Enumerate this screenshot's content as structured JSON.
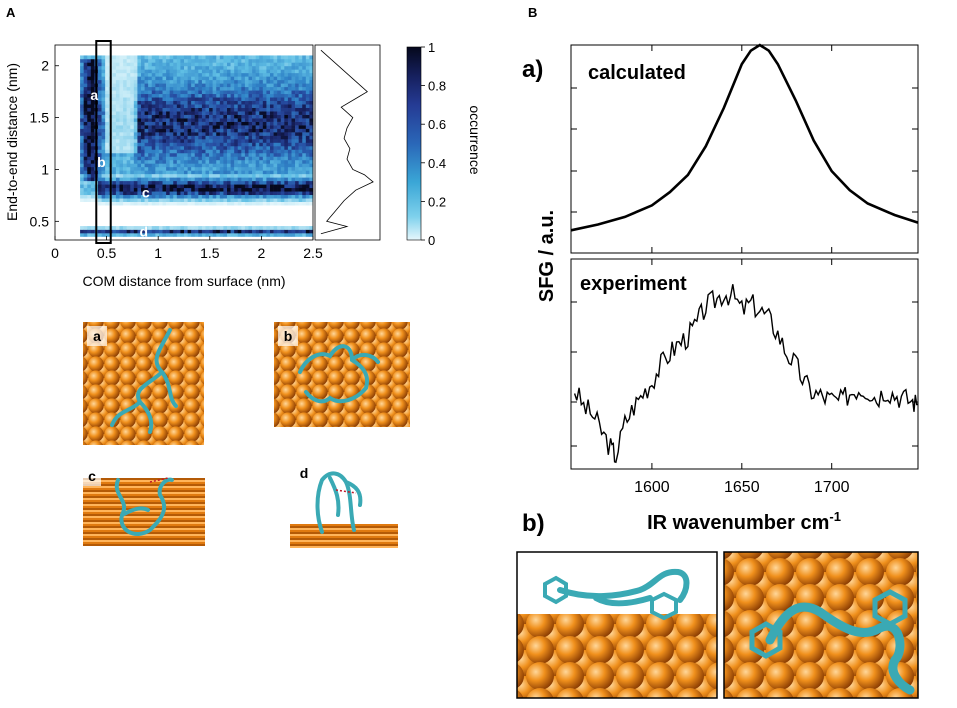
{
  "panel_labels": {
    "A": "A",
    "B": "B"
  },
  "subpanel_labels": {
    "a": "a)",
    "b": "b)"
  },
  "colors": {
    "dark": "#0b1030",
    "mid": "#253b94",
    "light": "#3aa6d6",
    "pale": "#c9ecf7",
    "gold": "#f08b17",
    "teal": "#3aa9b4",
    "frame": "#000000"
  },
  "snapshot_labels": [
    "a",
    "b",
    "c",
    "d"
  ],
  "chart_data": [
    {
      "id": "heatmap",
      "type": "heatmap",
      "xlabel": "COM distance from surface (nm)",
      "ylabel": "End-to-end distance (nm)",
      "xlim": [
        0,
        2.5
      ],
      "ylim": [
        0.32,
        2.2
      ],
      "xticks": [
        "0",
        "0.5",
        "1",
        "1.5",
        "2",
        "2.5"
      ],
      "xtick_values": [
        0,
        0.5,
        1,
        1.5,
        2,
        2.5
      ],
      "yticks": [
        "0.5",
        "1",
        "1.5",
        "2"
      ],
      "ytick_values": [
        0.5,
        1,
        1.5,
        2
      ],
      "highlight_window_x": [
        0.4,
        0.54
      ],
      "annotations": [
        {
          "label": "a",
          "x": 0.38,
          "y": 1.72
        },
        {
          "label": "b",
          "x": 0.45,
          "y": 1.07
        },
        {
          "label": "c",
          "x": 0.88,
          "y": 0.78
        },
        {
          "label": "d",
          "x": 0.86,
          "y": 0.4
        }
      ],
      "colorbar": {
        "label": "occurrence",
        "range": [
          0,
          1
        ],
        "ticks": [
          "0",
          "0.2",
          "0.4",
          "0.6",
          "0.8",
          "1"
        ],
        "tick_values": [
          0,
          0.2,
          0.4,
          0.6,
          0.8,
          1
        ]
      },
      "marginal_profile": {
        "y": [
          0.38,
          0.45,
          0.5,
          0.6,
          0.7,
          0.8,
          0.88,
          0.95,
          1.0,
          1.1,
          1.2,
          1.3,
          1.4,
          1.5,
          1.6,
          1.7,
          1.75,
          1.85,
          1.95,
          2.05,
          2.15
        ],
        "density": [
          0.05,
          0.5,
          0.15,
          0.3,
          0.45,
          0.65,
          0.95,
          0.8,
          0.6,
          0.5,
          0.55,
          0.45,
          0.5,
          0.6,
          0.4,
          0.7,
          0.85,
          0.65,
          0.45,
          0.25,
          0.05
        ]
      }
    },
    {
      "id": "calculated",
      "type": "line",
      "label": "calculated",
      "xlim": [
        1555,
        1748
      ],
      "x": [
        1555,
        1570,
        1585,
        1600,
        1610,
        1620,
        1630,
        1640,
        1650,
        1655,
        1660,
        1665,
        1670,
        1680,
        1690,
        1700,
        1710,
        1720,
        1735,
        1748
      ],
      "y": [
        0.03,
        0.06,
        0.1,
        0.16,
        0.23,
        0.32,
        0.47,
        0.67,
        0.9,
        0.97,
        1.0,
        0.97,
        0.9,
        0.71,
        0.5,
        0.34,
        0.24,
        0.17,
        0.11,
        0.07
      ]
    },
    {
      "id": "experiment",
      "type": "line",
      "label": "experiment",
      "xlabel": "IR wavenumber cm-1",
      "ylabel": "SFG / a.u.",
      "xlim": [
        1555,
        1748
      ],
      "xticks": [
        "1600",
        "1650",
        "1700"
      ],
      "xtick_values": [
        1600,
        1650,
        1700
      ],
      "x": [
        1557,
        1562,
        1567,
        1572,
        1577,
        1580,
        1585,
        1590,
        1595,
        1600,
        1605,
        1610,
        1615,
        1620,
        1625,
        1630,
        1635,
        1640,
        1645,
        1650,
        1655,
        1660,
        1665,
        1670,
        1675,
        1680,
        1685,
        1690,
        1695,
        1700,
        1705,
        1710,
        1715,
        1720,
        1725,
        1730,
        1735,
        1740,
        1745,
        1748
      ],
      "y": [
        0.4,
        0.3,
        0.25,
        0.15,
        0.05,
        0.0,
        0.2,
        0.3,
        0.38,
        0.45,
        0.55,
        0.62,
        0.68,
        0.72,
        0.8,
        0.9,
        0.94,
        0.98,
        0.97,
        0.88,
        0.92,
        0.88,
        0.83,
        0.74,
        0.62,
        0.55,
        0.44,
        0.38,
        0.36,
        0.34,
        0.33,
        0.38,
        0.41,
        0.4,
        0.35,
        0.4,
        0.37,
        0.35,
        0.33,
        0.31
      ]
    }
  ]
}
